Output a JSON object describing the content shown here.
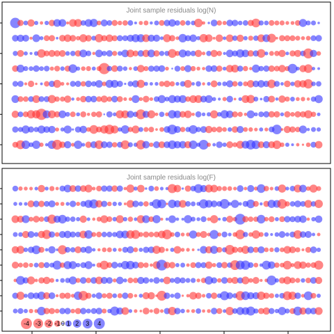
{
  "colors": {
    "positive": "#3333ff",
    "negative": "#ff3333",
    "frame": "#000000",
    "title": "#888888"
  },
  "chart_data": [
    {
      "type": "bubble",
      "title": "Joint sample residuals log(N)",
      "grid": false,
      "rows": 9,
      "cols": 59,
      "residuals": []
    },
    {
      "type": "bubble",
      "title": "Joint sample residuals log(F)",
      "grid": false,
      "rows": 9,
      "cols": 59,
      "residuals": []
    }
  ],
  "legend": {
    "placement": "bottom-left",
    "items": [
      {
        "label": "-4",
        "value": -4
      },
      {
        "label": "-3",
        "value": -3
      },
      {
        "label": "-2",
        "value": -2
      },
      {
        "label": "-1",
        "value": -1
      },
      {
        "label": "0",
        "value": 0
      },
      {
        "label": "1",
        "value": 1
      },
      {
        "label": "2",
        "value": 2
      },
      {
        "label": "3",
        "value": 3
      },
      {
        "label": "4",
        "value": 4
      }
    ]
  }
}
